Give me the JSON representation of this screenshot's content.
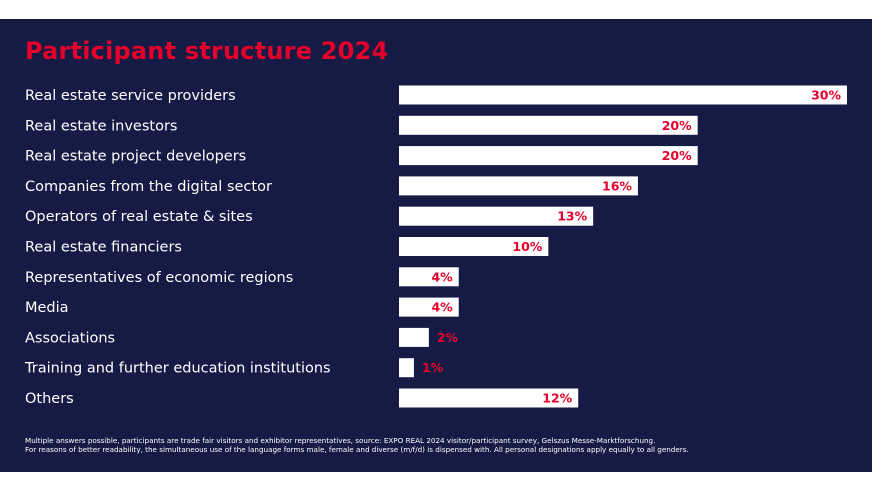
{
  "title": "Participant structure 2024",
  "colors": {
    "background": "#151b45",
    "bar": "#ffffff",
    "accent": "#e4002b"
  },
  "chart_data": {
    "type": "bar",
    "orientation": "horizontal",
    "value_suffix": "%",
    "categories": [
      "Real estate service providers",
      "Real estate investors",
      "Real estate project developers",
      "Companies from the digital sector",
      "Operators of real estate & sites",
      "Real estate financiers",
      "Representatives of economic regions",
      "Media",
      "Associations",
      "Training and further education institutions",
      "Others"
    ],
    "values": [
      30,
      20,
      20,
      16,
      13,
      10,
      4,
      4,
      2,
      1,
      12
    ],
    "xlim": [
      0,
      30
    ],
    "grid": false
  },
  "footnote": {
    "line1": "Multiple answers possible, participants are trade fair visitors and exhibitor representatives, source: EXPO REAL 2024 visitor/participant survey, Gelszus Messe-Marktforschung.",
    "line2": "For reasons of better readability, the simultaneous use of the language forms male, female and diverse (m/f/d) is dispensed with. All personal designations apply equally to all genders."
  }
}
